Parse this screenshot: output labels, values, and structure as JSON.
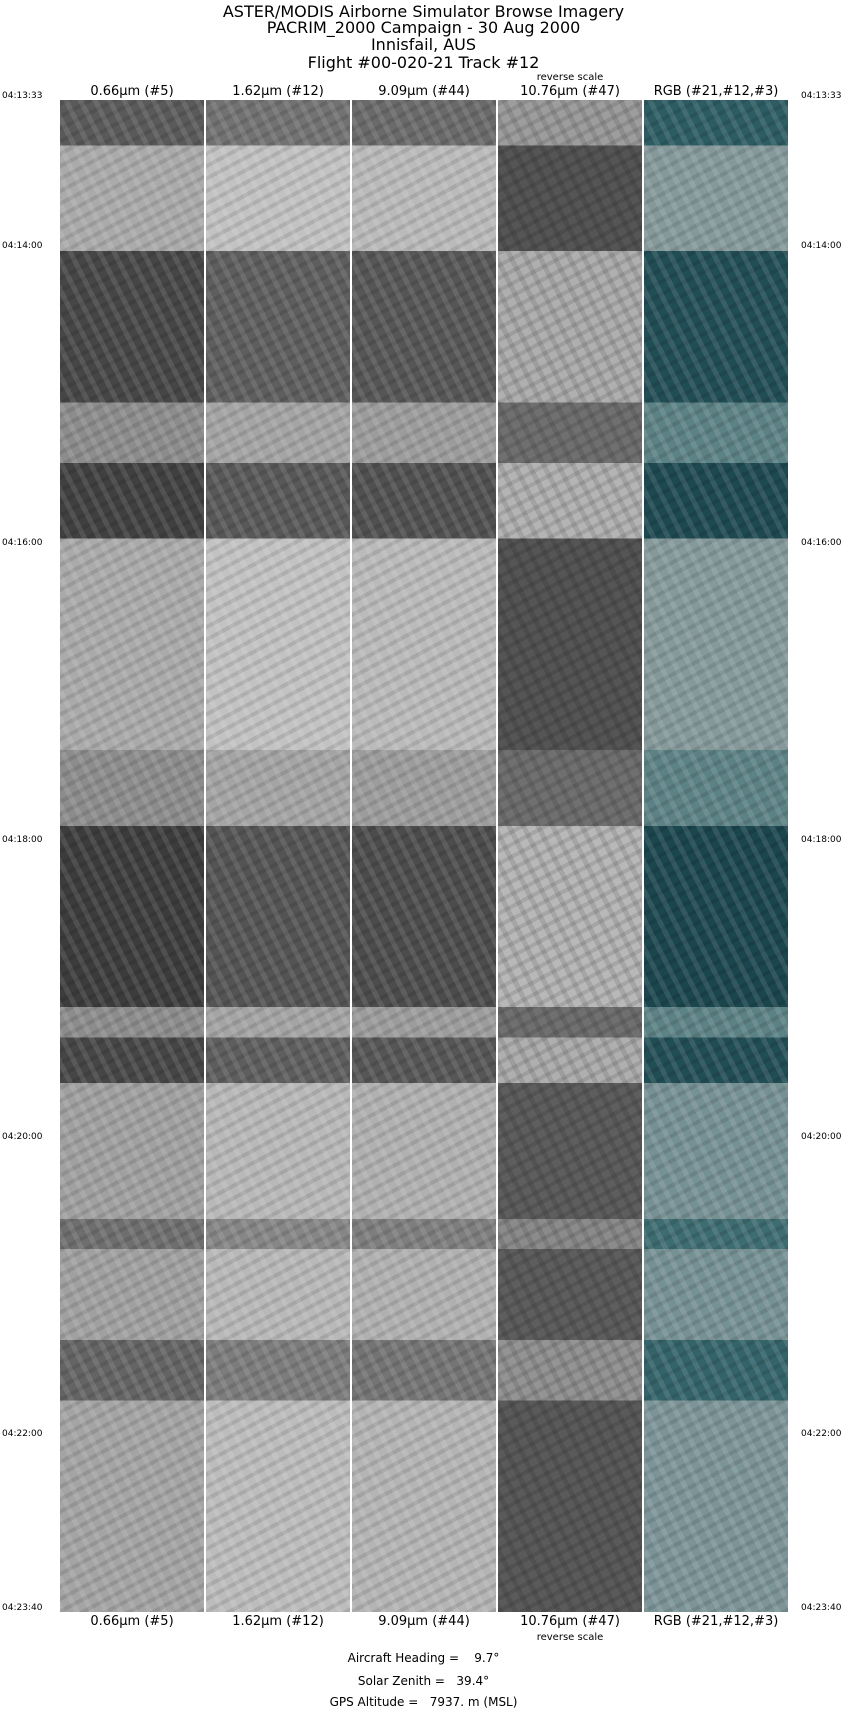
{
  "title_lines": [
    "ASTER/MODIS Airborne Simulator Browse Imagery",
    "PACRIM_2000 Campaign - 30 Aug 2000",
    "Innisfail, AUS",
    "Flight #00-020-21 Track #12"
  ],
  "panels": [
    {
      "label": "0.66µm (#5)",
      "mode": "gray"
    },
    {
      "label": "1.62µm (#12)",
      "mode": "gray"
    },
    {
      "label": "9.09µm (#44)",
      "mode": "gray"
    },
    {
      "label": "10.76µm (#47)",
      "mode": "reverse",
      "note": "reverse scale"
    },
    {
      "label": "RGB (#21,#12,#3)",
      "mode": "rgb"
    }
  ],
  "time_labels": [
    "04:13:33",
    "04:14:00",
    "04:16:00",
    "04:18:00",
    "04:20:00",
    "04:22:00",
    "04:23:40"
  ],
  "info": {
    "heading": "Aircraft Heading =    9.7°",
    "zenith": "Solar Zenith =   39.4°",
    "altitude": "GPS Altitude =   7937. m (MSL)"
  }
}
